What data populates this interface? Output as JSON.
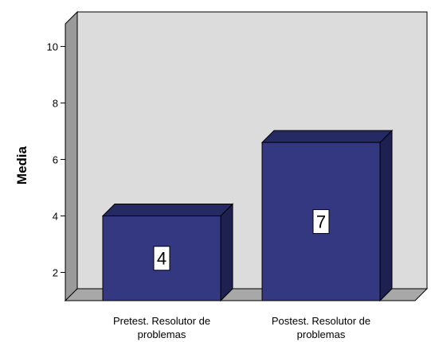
{
  "chart_data": {
    "type": "bar",
    "title": "",
    "xlabel": "",
    "ylabel": "Media",
    "categories": [
      "Pretest. Resolutor de problemas",
      "Postest. Resolutor de problemas"
    ],
    "category_lines": [
      [
        "Pretest. Resolutor de",
        "problemas"
      ],
      [
        "Postest. Resolutor de",
        "problemas"
      ]
    ],
    "values": [
      4,
      6.6
    ],
    "data_labels": [
      "4",
      "7"
    ],
    "yticks": [
      "2",
      "4",
      "6",
      "8",
      "10"
    ],
    "ylim": [
      1,
      10.8
    ],
    "grid": false,
    "style": "3d",
    "colors": {
      "bar_front": "#333880",
      "bar_top": "#262a63",
      "bar_side": "#1d2050",
      "back_wall": "#dcdcdc",
      "side_wall": "#9a9a9a",
      "floor": "#a8a8a8",
      "axis": "#000000"
    }
  }
}
